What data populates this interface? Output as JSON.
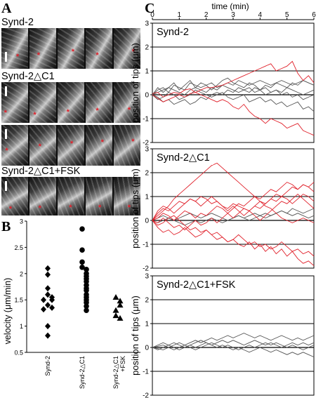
{
  "panel_labels": {
    "a": "A",
    "b": "B",
    "c": "C"
  },
  "panel_a": {
    "rows": [
      {
        "label": "Synd-2"
      },
      {
        "label": "Synd-2△C1"
      },
      {
        "label": ""
      },
      {
        "label": "Synd-2△C1+FSK"
      }
    ],
    "marker": "*"
  },
  "chart_data": [
    {
      "type": "scatter",
      "panel": "B",
      "ylabel": "velocity (μm/min)",
      "ylim": [
        0.5,
        3.0
      ],
      "yticks": [
        "0.5",
        "1",
        "1.5",
        "2",
        "2.5",
        "3"
      ],
      "categories": [
        "Synd-2",
        "Synd-2△C1",
        "Synd-2△C1 +FSK"
      ],
      "series": [
        {
          "marker": "diamond",
          "values": [
            2.1,
            1.98,
            1.72,
            1.6,
            1.55,
            1.5,
            1.5,
            1.4,
            1.35,
            1.32,
            1.0,
            0.82
          ]
        },
        {
          "marker": "circle",
          "values": [
            2.85,
            2.45,
            2.22,
            2.12,
            2.08,
            2.0,
            1.95,
            1.9,
            1.85,
            1.78,
            1.72,
            1.68,
            1.6,
            1.55,
            1.5,
            1.45,
            1.38,
            1.3
          ]
        },
        {
          "marker": "triangle",
          "values": [
            1.55,
            1.48,
            1.4,
            1.3,
            1.2,
            1.15
          ]
        }
      ]
    },
    {
      "type": "line",
      "panel": "C",
      "title": "Synd-2",
      "xlabel": "time (min)",
      "ylabel": "position of tips (μm)",
      "xlim": [
        0,
        6
      ],
      "ylim": [
        -2,
        3
      ],
      "xticks": [
        "0",
        "1",
        "2",
        "3",
        "4",
        "5",
        "6"
      ],
      "yticks": [
        "3",
        "2",
        "1",
        "0",
        "-1",
        "-2"
      ],
      "colors": {
        "highlight": "#e0202a",
        "other": "#555555"
      },
      "series": [
        {
          "color": "red",
          "values": [
            0.05,
            0.1,
            -0.1,
            0.0,
            0.1,
            0.05,
            0.2,
            0.25,
            0.1,
            0.2,
            0.3,
            0.3,
            0.35,
            0.4,
            0.5,
            0.6,
            0.7,
            0.8,
            0.9,
            1.0,
            1.1,
            1.2,
            1.3,
            1.0,
            1.1,
            1.2,
            1.4,
            0.9,
            0.6,
            0.8,
            0.5
          ]
        },
        {
          "color": "red",
          "values": [
            0.0,
            -0.15,
            -0.3,
            -0.2,
            -0.1,
            0.0,
            -0.1,
            0.05,
            0.1,
            0.0,
            -0.1,
            -0.2,
            -0.3,
            -0.2,
            -0.3,
            -0.5,
            -0.6,
            -0.4,
            -0.7,
            -0.9,
            -1.0,
            -1.2,
            -1.0,
            -1.1,
            -1.2,
            -1.4,
            -1.3,
            -1.2,
            -1.5,
            -1.6,
            -1.7
          ]
        },
        {
          "color": "gray",
          "values": [
            0.0,
            0.2,
            0.3,
            0.1,
            0.4,
            0.3,
            0.2,
            0.5,
            0.4,
            0.3,
            0.4,
            0.5,
            0.3,
            0.4,
            0.5,
            0.4,
            0.6,
            0.5,
            0.4,
            0.5,
            0.6,
            0.5,
            0.4,
            0.5,
            0.6,
            0.5,
            0.4,
            0.5,
            0.6,
            0.5,
            0.4
          ]
        },
        {
          "color": "gray",
          "values": [
            0.0,
            -0.2,
            -0.1,
            0.1,
            0.0,
            -0.2,
            -0.1,
            0.0,
            0.2,
            0.1,
            0.0,
            -0.1,
            0.0,
            0.1,
            -0.1,
            -0.2,
            -0.1,
            0.0,
            -0.3,
            -0.2,
            -0.1,
            -0.3,
            -0.2,
            -0.4,
            -0.3,
            -0.5,
            -0.4,
            -0.3,
            -0.6,
            -0.5,
            -0.7
          ]
        },
        {
          "color": "gray",
          "values": [
            0.0,
            0.3,
            0.1,
            0.3,
            0.5,
            0.2,
            0.4,
            0.6,
            0.3,
            0.5,
            0.4,
            0.2,
            0.4,
            0.6,
            0.7,
            0.5,
            0.4,
            0.3,
            0.5,
            0.4,
            0.2,
            0.3,
            0.1,
            0.2,
            0.0,
            0.1,
            -0.1,
            0.0,
            -0.2,
            -0.1,
            0.0
          ]
        },
        {
          "color": "gray",
          "values": [
            0.0,
            -0.1,
            -0.3,
            -0.2,
            -0.4,
            -0.3,
            -0.2,
            -0.4,
            -0.3,
            -0.1,
            -0.2,
            0.0,
            0.1,
            0.0,
            0.2,
            0.1,
            0.3,
            0.2,
            0.1,
            0.3,
            0.2,
            0.4,
            0.3,
            0.5,
            0.4,
            0.3,
            0.5,
            0.4,
            0.6,
            0.5,
            0.4
          ]
        },
        {
          "color": "gray",
          "values": [
            0.0,
            0.1,
            0.2,
            0.3,
            0.2,
            0.1,
            0.0,
            0.2,
            0.3,
            0.2,
            0.1,
            0.3,
            0.2,
            0.4,
            0.3,
            0.2,
            0.1,
            0.2,
            0.3,
            0.1,
            0.2,
            0.0,
            0.1,
            0.2,
            0.1,
            0.3,
            0.2,
            0.1,
            0.0,
            0.1,
            0.2
          ]
        }
      ]
    },
    {
      "type": "line",
      "panel": "C",
      "title": "Synd-2△C1",
      "ylabel": "position of tips (μm)",
      "xlim": [
        0,
        6
      ],
      "ylim": [
        -2,
        3
      ],
      "yticks": [
        "3",
        "2",
        "1",
        "0",
        "-1",
        "-2"
      ],
      "colors": {
        "highlight": "#e0202a",
        "other": "#555555"
      },
      "series": [
        {
          "color": "red",
          "values": [
            0.0,
            0.2,
            0.4,
            0.6,
            0.9,
            1.1,
            1.3,
            1.5,
            1.7,
            1.9,
            2.1,
            2.3,
            2.4,
            2.2,
            2.0,
            1.8,
            1.6,
            1.4,
            1.2,
            1.0,
            0.8,
            0.6,
            0.5,
            0.3,
            0.1,
            0.0,
            -0.1,
            0.0,
            0.1,
            0.0,
            -0.1
          ]
        },
        {
          "color": "red",
          "values": [
            0.0,
            0.3,
            0.5,
            0.4,
            0.6,
            0.8,
            0.7,
            0.9,
            0.8,
            1.0,
            0.9,
            0.7,
            0.8,
            0.6,
            0.5,
            0.7,
            0.6,
            0.5,
            0.4,
            0.6,
            0.5,
            0.7,
            0.9,
            1.1,
            1.0,
            1.2,
            1.4,
            1.3,
            1.5,
            1.4,
            1.2
          ]
        },
        {
          "color": "red",
          "values": [
            0.0,
            -0.2,
            -0.1,
            0.1,
            0.2,
            0.0,
            -0.2,
            -0.4,
            -0.3,
            -0.5,
            -0.4,
            -0.6,
            -0.5,
            -0.7,
            -0.9,
            -0.8,
            -1.0,
            -1.1,
            -0.9,
            -1.2,
            -1.0,
            -1.3,
            -1.1,
            -1.4,
            -1.2,
            -1.5,
            -1.3,
            -1.6,
            -1.8,
            -1.7,
            -1.9
          ]
        },
        {
          "color": "red",
          "values": [
            0.0,
            0.1,
            0.3,
            0.2,
            0.0,
            0.2,
            0.4,
            0.3,
            0.1,
            0.3,
            0.2,
            0.4,
            0.6,
            0.5,
            0.3,
            0.5,
            0.7,
            0.6,
            0.8,
            1.0,
            0.9,
            1.1,
            1.3,
            1.2,
            1.4,
            1.6,
            1.5,
            1.3,
            1.5,
            1.4,
            1.6
          ]
        },
        {
          "color": "red",
          "values": [
            0.0,
            -0.3,
            -0.5,
            -0.4,
            -0.6,
            -0.5,
            -0.3,
            -0.5,
            -0.7,
            -0.6,
            -0.4,
            -0.6,
            -0.8,
            -0.7,
            -0.9,
            -0.8,
            -0.6,
            -0.8,
            -1.0,
            -0.9,
            -1.1,
            -1.0,
            -1.2,
            -1.1,
            -0.9,
            -1.1,
            -1.3,
            -1.2,
            -1.4,
            -1.3,
            -1.5
          ]
        },
        {
          "color": "red",
          "values": [
            0.0,
            0.4,
            0.6,
            0.5,
            0.3,
            0.5,
            0.7,
            0.9,
            0.8,
            0.6,
            0.8,
            1.0,
            0.8,
            0.6,
            0.4,
            0.6,
            0.4,
            0.2,
            0.4,
            0.2,
            0.0,
            0.2,
            0.4,
            0.6,
            0.8,
            0.7,
            0.9,
            1.1,
            0.9,
            0.7,
            0.5
          ]
        },
        {
          "color": "red",
          "values": [
            0.0,
            -0.1,
            0.1,
            -0.1,
            -0.3,
            -0.2,
            -0.4,
            -0.2,
            0.0,
            -0.2,
            -0.1,
            0.1,
            -0.1,
            0.1,
            0.3,
            0.1,
            0.3,
            0.5,
            0.4,
            0.6,
            0.8,
            0.7,
            0.9,
            0.8,
            1.0,
            0.9,
            0.7,
            0.9,
            1.1,
            1.0,
            0.8
          ]
        },
        {
          "color": "gray",
          "values": [
            0.0,
            0.1,
            0.2,
            0.1,
            0.0,
            0.1,
            0.2,
            0.3,
            0.2,
            0.1,
            0.2,
            0.3,
            0.2,
            0.1,
            0.0,
            0.1,
            0.2,
            0.1,
            0.2,
            0.3,
            0.2,
            0.1,
            0.2,
            0.3,
            0.4,
            0.3,
            0.2,
            0.3,
            0.2,
            0.1,
            0.2
          ]
        },
        {
          "color": "gray",
          "values": [
            0.0,
            -0.1,
            0.0,
            0.1,
            0.0,
            -0.1,
            -0.2,
            -0.1,
            0.0,
            -0.1,
            0.0,
            0.1,
            0.0,
            -0.1,
            0.0,
            0.1,
            0.2,
            0.1,
            0.0,
            0.1,
            0.2,
            0.3,
            0.2,
            0.3,
            0.4,
            0.3,
            0.5,
            0.4,
            0.3,
            0.4,
            0.5
          ]
        }
      ]
    },
    {
      "type": "line",
      "panel": "C",
      "title": "Synd-2△C1+FSK",
      "ylabel": "position of tips (μm)",
      "xlim": [
        0,
        6
      ],
      "ylim": [
        -2,
        3
      ],
      "yticks": [
        "3",
        "2",
        "1",
        "0",
        "-1",
        "-2"
      ],
      "colors": {
        "highlight": "#e0202a",
        "other": "#555555"
      },
      "series": [
        {
          "color": "gray",
          "values": [
            0.0,
            0.05,
            0.1,
            0.0,
            0.1,
            0.2,
            0.1,
            0.2,
            0.3,
            0.2,
            0.3,
            0.4,
            0.3,
            0.4,
            0.5,
            0.4,
            0.5,
            0.6,
            0.5,
            0.4,
            0.5,
            0.4,
            0.3,
            0.4,
            0.5,
            0.4,
            0.3,
            0.4,
            0.3,
            0.4,
            0.5
          ]
        },
        {
          "color": "gray",
          "values": [
            0.0,
            -0.1,
            0.0,
            0.1,
            0.0,
            -0.1,
            0.0,
            0.1,
            0.0,
            0.1,
            0.2,
            0.1,
            0.0,
            0.1,
            0.0,
            -0.1,
            0.0,
            -0.1,
            -0.2,
            -0.1,
            0.0,
            -0.1,
            -0.2,
            -0.1,
            -0.2,
            -0.3,
            -0.2,
            -0.3,
            -0.2,
            -0.3,
            -0.4
          ]
        },
        {
          "color": "gray",
          "values": [
            0.0,
            0.1,
            0.2,
            0.1,
            0.2,
            0.1,
            0.0,
            0.1,
            0.2,
            0.3,
            0.2,
            0.1,
            0.2,
            0.3,
            0.2,
            0.3,
            0.2,
            0.1,
            0.2,
            0.3,
            0.2,
            0.1,
            0.2,
            0.1,
            0.0,
            0.1,
            0.2,
            0.1,
            0.2,
            0.1,
            0.2
          ]
        },
        {
          "color": "gray",
          "values": [
            0.0,
            -0.05,
            -0.1,
            0.0,
            -0.1,
            0.0,
            0.1,
            0.0,
            -0.1,
            0.0,
            0.1,
            0.2,
            0.1,
            0.0,
            0.1,
            0.0,
            -0.1,
            0.0,
            0.1,
            0.0,
            0.1,
            0.2,
            0.1,
            0.2,
            0.1,
            0.0,
            0.1,
            0.0,
            -0.1,
            0.0,
            0.1
          ]
        }
      ]
    }
  ]
}
